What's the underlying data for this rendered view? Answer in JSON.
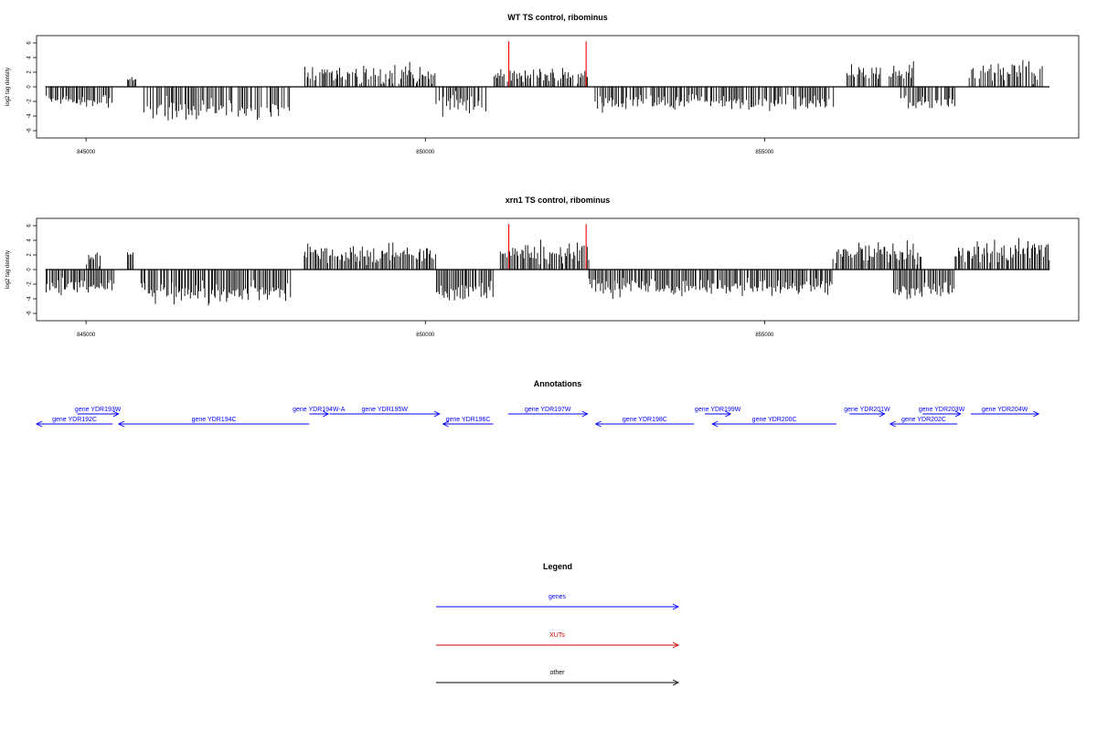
{
  "chart_data": [
    {
      "type": "bar",
      "title": "WT TS control, ribominus",
      "ylabel": "log2 tag density",
      "ylim": [
        -7,
        7
      ],
      "yticks": [
        -6,
        -4,
        -2,
        0,
        2,
        4,
        6
      ],
      "xlim": [
        844270,
        859630
      ],
      "xticks": [
        845000,
        850000,
        855000
      ],
      "track_start": 844400,
      "track_end": 859200,
      "grid": false,
      "seed": 11,
      "density": 0.82,
      "highlights": [
        {
          "x": 851230,
          "value": 6.2,
          "color": "#ff0000"
        },
        {
          "x": 852370,
          "value": 6.2,
          "color": "#ff0000"
        }
      ],
      "segments": [
        {
          "start": 844400,
          "end": 845400,
          "strand": "minus",
          "mean": 2.0,
          "spread": 0.6
        },
        {
          "start": 845600,
          "end": 845750,
          "strand": "plus",
          "mean": 0.9,
          "spread": 0.2
        },
        {
          "start": 845850,
          "end": 848000,
          "strand": "minus",
          "mean": 3.0,
          "spread": 0.9
        },
        {
          "start": 848200,
          "end": 850150,
          "strand": "plus",
          "mean": 1.6,
          "spread": 0.9
        },
        {
          "start": 850150,
          "end": 850900,
          "strand": "minus",
          "mean": 2.4,
          "spread": 0.9
        },
        {
          "start": 851000,
          "end": 852400,
          "strand": "plus",
          "mean": 1.5,
          "spread": 0.7
        },
        {
          "start": 852500,
          "end": 856000,
          "strand": "minus",
          "mean": 2.0,
          "spread": 0.7
        },
        {
          "start": 856200,
          "end": 857200,
          "strand": "plus",
          "mean": 2.0,
          "spread": 0.8
        },
        {
          "start": 857000,
          "end": 857800,
          "strand": "minus",
          "mean": 2.1,
          "spread": 0.6
        },
        {
          "start": 858000,
          "end": 859100,
          "strand": "plus",
          "mean": 2.1,
          "spread": 0.8
        }
      ]
    },
    {
      "type": "bar",
      "title": "xrn1 TS control, ribominus",
      "ylabel": "log2 tag density",
      "ylim": [
        -7,
        7
      ],
      "yticks": [
        -6,
        -4,
        -2,
        0,
        2,
        4,
        6
      ],
      "xlim": [
        844270,
        859630
      ],
      "xticks": [
        845000,
        850000,
        855000
      ],
      "track_start": 844400,
      "track_end": 859200,
      "grid": false,
      "seed": 29,
      "density": 0.95,
      "highlights": [
        {
          "x": 851230,
          "value": 6.2,
          "color": "#ff0000"
        },
        {
          "x": 852370,
          "value": 6.2,
          "color": "#ff0000"
        }
      ],
      "segments": [
        {
          "start": 844400,
          "end": 845400,
          "strand": "minus",
          "mean": 2.2,
          "spread": 0.7
        },
        {
          "start": 845000,
          "end": 845200,
          "strand": "plus",
          "mean": 1.5,
          "spread": 0.5
        },
        {
          "start": 845600,
          "end": 845700,
          "strand": "plus",
          "mean": 2.2,
          "spread": 0.2
        },
        {
          "start": 845800,
          "end": 848000,
          "strand": "minus",
          "mean": 3.2,
          "spread": 0.9
        },
        {
          "start": 848200,
          "end": 850150,
          "strand": "plus",
          "mean": 2.2,
          "spread": 0.9
        },
        {
          "start": 850150,
          "end": 851000,
          "strand": "minus",
          "mean": 3.0,
          "spread": 1.0
        },
        {
          "start": 851100,
          "end": 852400,
          "strand": "plus",
          "mean": 2.2,
          "spread": 0.9
        },
        {
          "start": 852400,
          "end": 856000,
          "strand": "minus",
          "mean": 2.4,
          "spread": 0.8
        },
        {
          "start": 856000,
          "end": 857300,
          "strand": "plus",
          "mean": 2.3,
          "spread": 0.9
        },
        {
          "start": 856900,
          "end": 857800,
          "strand": "minus",
          "mean": 2.8,
          "spread": 0.8
        },
        {
          "start": 857800,
          "end": 859200,
          "strand": "plus",
          "mean": 2.6,
          "spread": 0.9
        }
      ]
    }
  ],
  "annotations": {
    "title": "Annotations",
    "genes": [
      {
        "label": "gene YDR192C",
        "start": 844270,
        "end": 845390,
        "strand": "minus",
        "row": 2
      },
      {
        "label": "gene YDR193W",
        "start": 844870,
        "end": 845480,
        "strand": "plus",
        "row": 1
      },
      {
        "label": "gene YDR194C",
        "start": 845480,
        "end": 848290,
        "strand": "minus",
        "row": 2
      },
      {
        "label": "gene YDR194W-A",
        "start": 848290,
        "end": 848570,
        "strand": "plus",
        "row": 1
      },
      {
        "label": "gene YDR195W",
        "start": 848590,
        "end": 850210,
        "strand": "plus",
        "row": 1
      },
      {
        "label": "gene YDR196C",
        "start": 850260,
        "end": 851000,
        "strand": "minus",
        "row": 2
      },
      {
        "label": "gene YDR197W",
        "start": 851220,
        "end": 852390,
        "strand": "plus",
        "row": 1
      },
      {
        "label": "gene YDR198C",
        "start": 852510,
        "end": 853960,
        "strand": "minus",
        "row": 2
      },
      {
        "label": "gene YDR199W",
        "start": 854120,
        "end": 854500,
        "strand": "plus",
        "row": 1
      },
      {
        "label": "gene YDR200C",
        "start": 854230,
        "end": 856060,
        "strand": "minus",
        "row": 2
      },
      {
        "label": "gene YDR201W",
        "start": 856250,
        "end": 856770,
        "strand": "plus",
        "row": 1
      },
      {
        "label": "gene YDR202C",
        "start": 856850,
        "end": 857840,
        "strand": "minus",
        "row": 2
      },
      {
        "label": "gene YDR203W",
        "start": 857330,
        "end": 857890,
        "strand": "plus",
        "row": 1
      },
      {
        "label": "gene YDR204W",
        "start": 858040,
        "end": 859040,
        "strand": "plus",
        "row": 1
      }
    ]
  },
  "legend": {
    "title": "Legend",
    "items": [
      {
        "label": "genes",
        "color": "#0000ff"
      },
      {
        "label": "XUTs",
        "color": "#cc0000"
      },
      {
        "label": "other",
        "color": "#000000"
      }
    ]
  }
}
